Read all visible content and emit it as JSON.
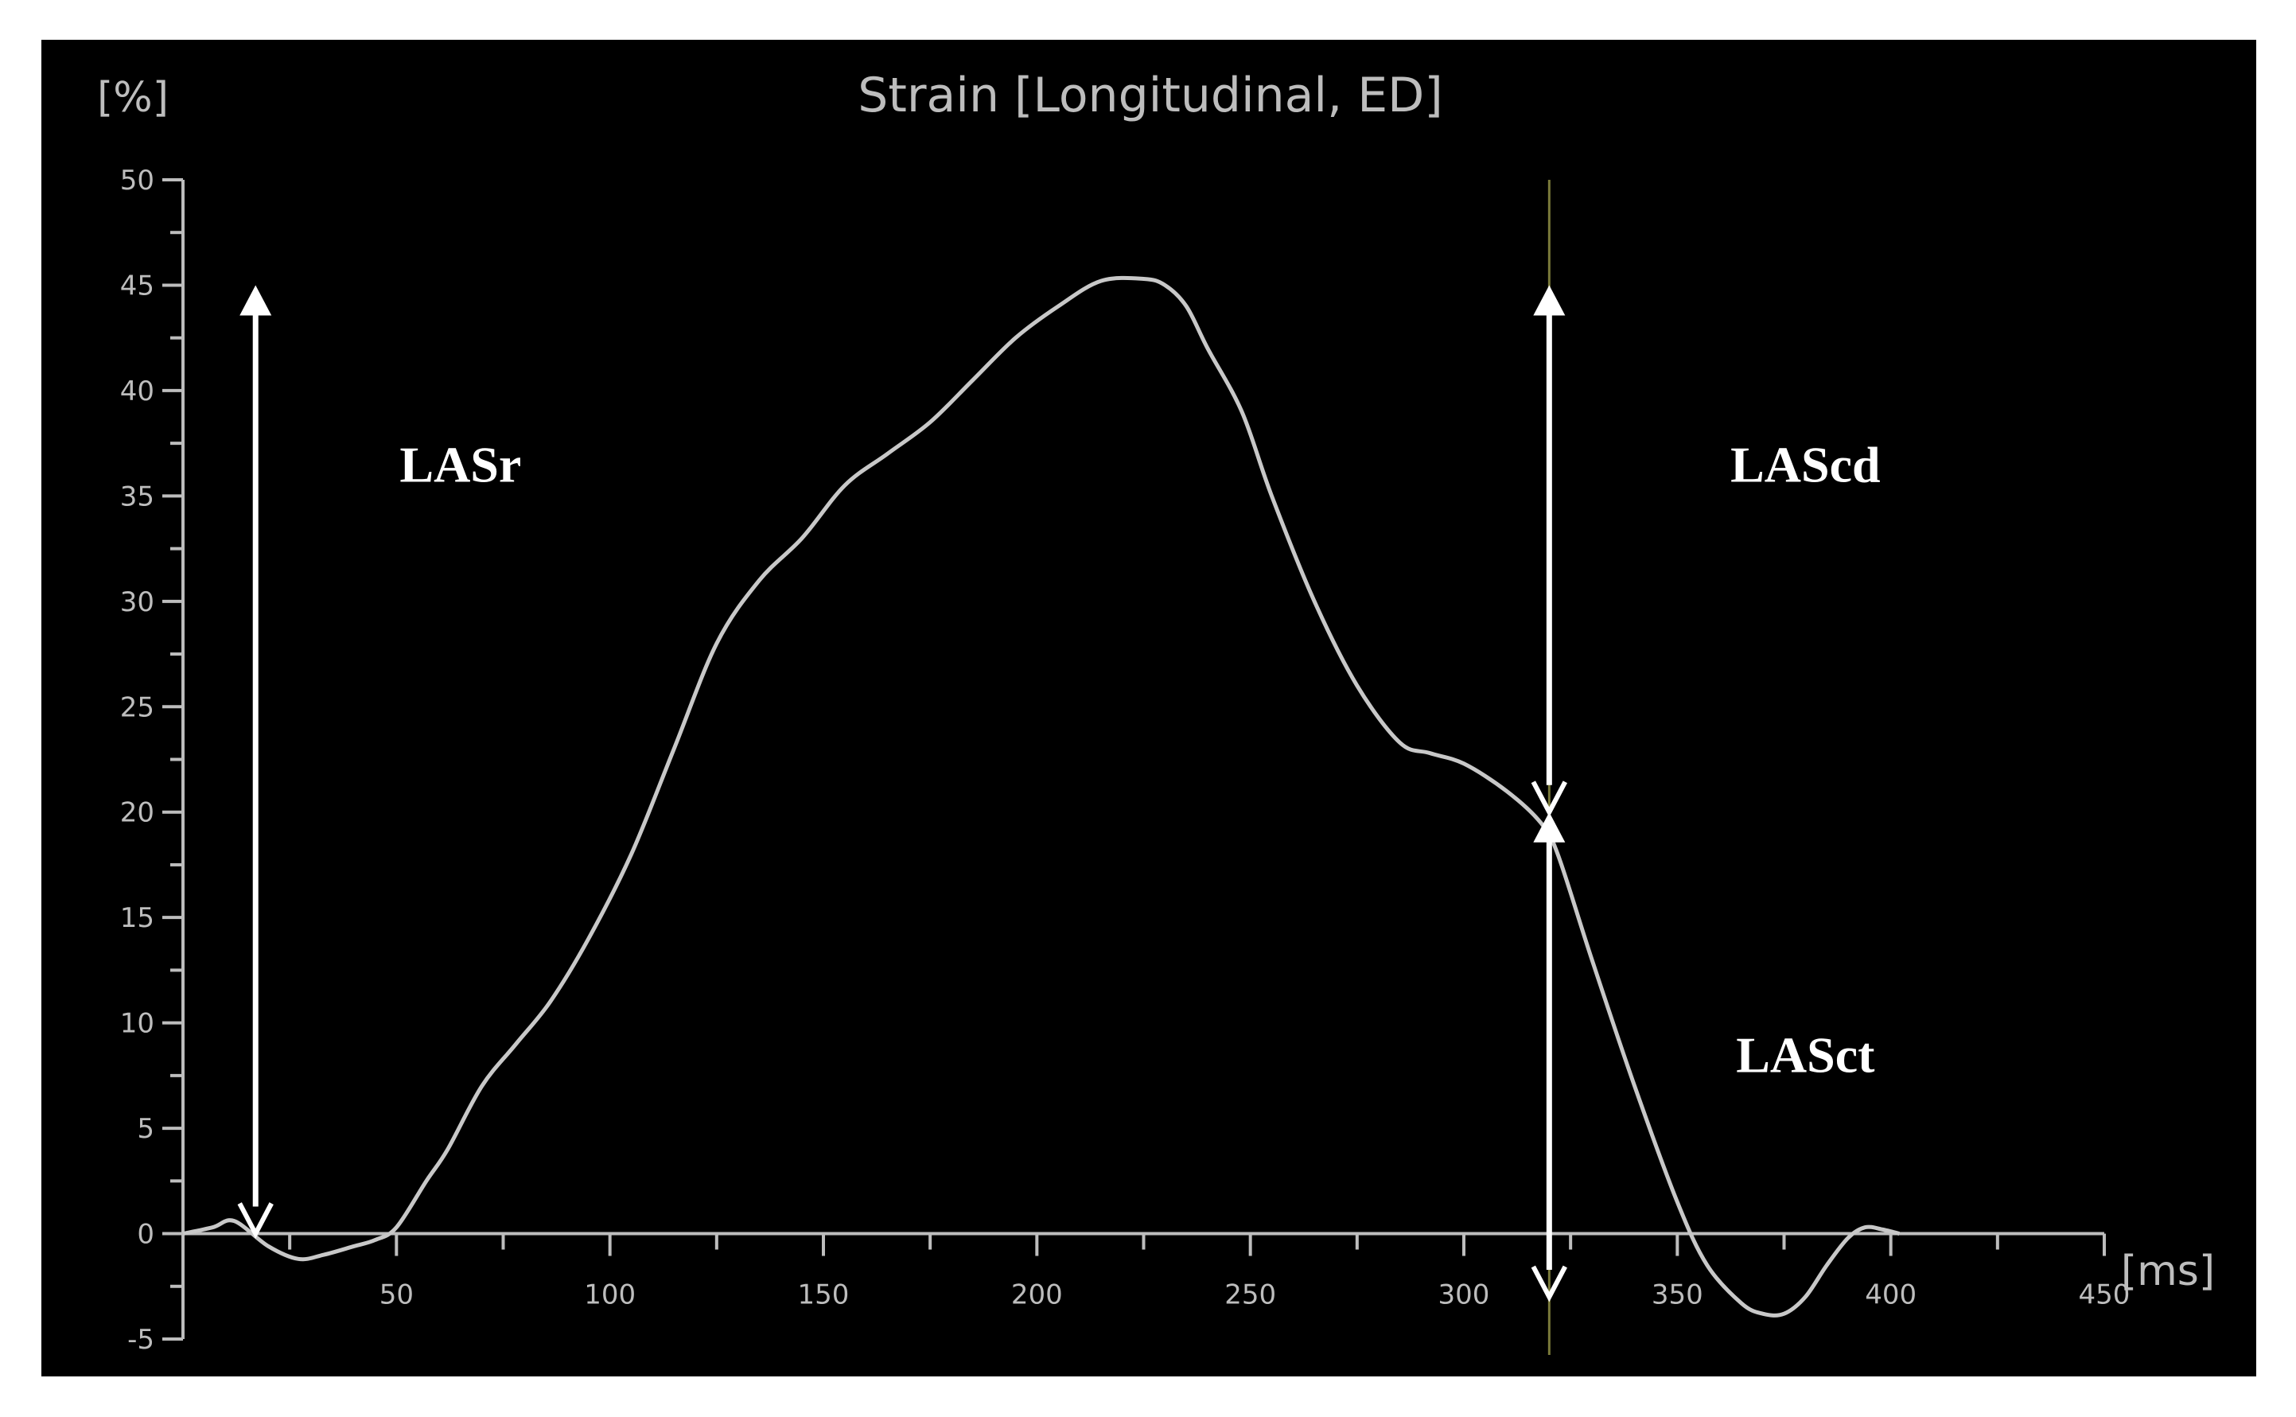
{
  "chart_data": {
    "type": "line",
    "title": "Strain [Longitudinal, ED]",
    "xlabel": "[ms]",
    "ylabel": "[%]",
    "xlim": [
      0,
      450
    ],
    "ylim": [
      -5,
      50
    ],
    "xticks": [
      50,
      100,
      150,
      200,
      250,
      300,
      350,
      400,
      450
    ],
    "xtick_labels": [
      "50",
      "100",
      "150",
      "200",
      "250",
      "300",
      "350",
      "400",
      "450"
    ],
    "yticks": [
      -5,
      0,
      5,
      10,
      15,
      20,
      25,
      30,
      35,
      40,
      45,
      50
    ],
    "ytick_labels": [
      "-5",
      "0",
      "5",
      "10",
      "15",
      "20",
      "25",
      "30",
      "35",
      "40",
      "45",
      "50"
    ],
    "grid": false,
    "colors": {
      "background": "#000000",
      "curve": "#c8c8c8",
      "axis": "#bdbdbd",
      "arrows": "#ffffff",
      "marker": "#7a7a3a"
    },
    "series": [
      {
        "x": [
          0,
          7,
          12,
          20,
          27,
          33,
          40,
          45,
          50,
          57,
          62,
          70,
          78,
          86,
          95,
          105,
          115,
          125,
          135,
          145,
          155,
          165,
          175,
          185,
          195,
          205,
          215,
          225,
          230,
          235,
          240,
          248,
          255,
          265,
          275,
          285,
          292,
          300,
          310,
          318,
          322,
          330,
          340,
          350,
          357,
          365,
          370,
          375,
          380,
          385,
          390,
          394,
          398,
          402
        ],
        "y": [
          0,
          0.3,
          0.6,
          -0.6,
          -1.2,
          -1.0,
          -0.6,
          -0.3,
          0.3,
          2.5,
          4,
          7,
          9,
          11,
          14,
          18,
          23,
          28,
          31,
          33,
          35.5,
          37,
          38.5,
          40.5,
          42.5,
          44,
          45.2,
          45.3,
          45,
          44,
          42,
          39,
          35,
          30,
          26,
          23.3,
          22.8,
          22.3,
          21,
          19.5,
          18,
          13,
          7,
          1.5,
          -1.5,
          -3.3,
          -3.8,
          -3.8,
          -3.0,
          -1.5,
          -0.2,
          0.3,
          0.2,
          0
        ]
      }
    ],
    "annotations": [
      {
        "text": "LASr",
        "arrow_x": 17,
        "arrow_y_from": 0,
        "arrow_y_to": 45,
        "text_x": 65,
        "text_y": 36.5
      },
      {
        "text": "LAScd",
        "arrow_x": 320,
        "arrow_y_from": 20,
        "arrow_y_to": 45,
        "text_x": 380,
        "text_y": 36.5
      },
      {
        "text": "LASct",
        "arrow_x": 320,
        "arrow_y_from": -3,
        "arrow_y_to": 20,
        "text_x": 380,
        "text_y": 8.5
      }
    ],
    "marker_x": 320
  }
}
